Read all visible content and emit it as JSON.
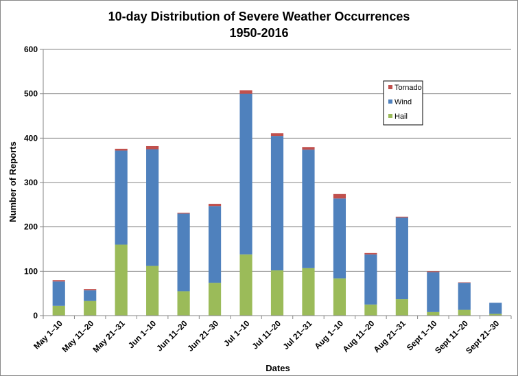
{
  "chart_data": {
    "type": "bar",
    "stacked": true,
    "title": "10-day Distribution of Severe Weather Occurrences",
    "subtitle": "1950-2016",
    "xlabel": "Dates",
    "ylabel": "Number of Reports",
    "ylim": [
      0,
      600
    ],
    "yticks": [
      0,
      100,
      200,
      300,
      400,
      500,
      600
    ],
    "grid": true,
    "legend_position": "top-right",
    "categories": [
      "May 1–10",
      "May 11–20",
      "May 21–31",
      "Jun 1–10",
      "Jun 11–20",
      "Jun 21–30",
      "Jul 1–10",
      "Jul 11–20",
      "Jul 21–31",
      "Aug 1–10",
      "Aug 11–20",
      "Aug 21–31",
      "Sept 1–10",
      "Sept 11–20",
      "Sept 21–30"
    ],
    "series": [
      {
        "name": "Hail",
        "color": "#9BBB59",
        "values": [
          22,
          33,
          160,
          112,
          55,
          74,
          138,
          102,
          107,
          84,
          25,
          37,
          8,
          13,
          4
        ]
      },
      {
        "name": "Wind",
        "color": "#4F81BD",
        "values": [
          55,
          24,
          212,
          263,
          175,
          173,
          362,
          303,
          267,
          180,
          113,
          184,
          90,
          61,
          25
        ]
      },
      {
        "name": "Tornado",
        "color": "#C0504D",
        "values": [
          3,
          3,
          4,
          7,
          2,
          5,
          8,
          6,
          6,
          10,
          3,
          2,
          2,
          1,
          0
        ]
      }
    ],
    "legend_order": [
      "Tornado",
      "Wind",
      "Hail"
    ]
  }
}
